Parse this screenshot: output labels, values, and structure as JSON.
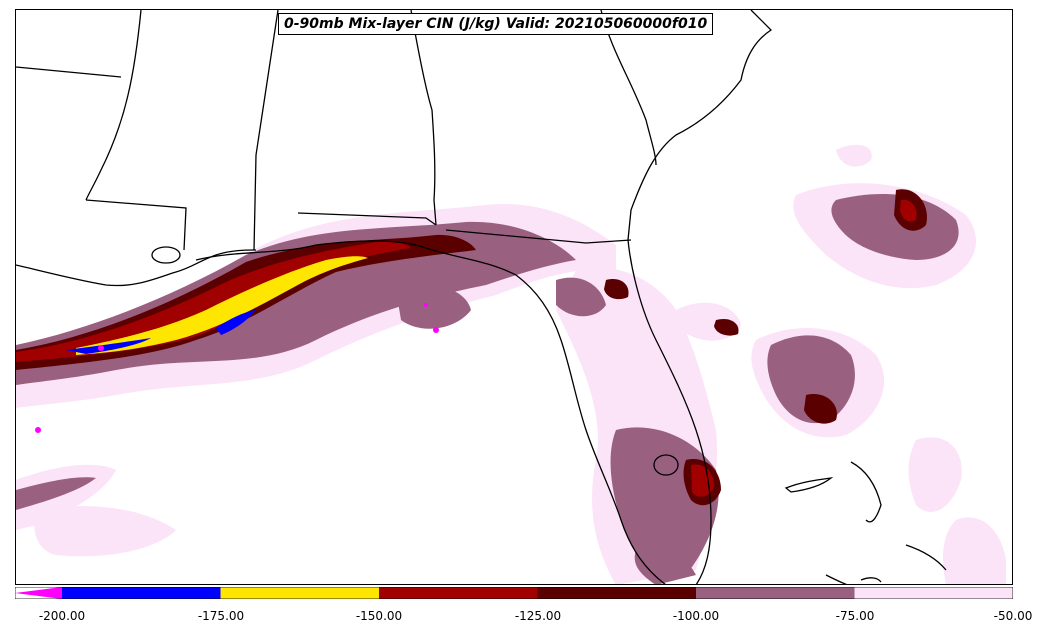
{
  "title": "0-90mb Mix-layer CIN (J/kg) Valid: 202105060000f010",
  "colorbar": {
    "ticks": [
      "-200.00",
      "-175.00",
      "-150.00",
      "-125.00",
      "-100.00",
      "-75.00",
      "-50.00"
    ],
    "levels": [
      {
        "from": -200,
        "to": -175,
        "color": "#0000ff"
      },
      {
        "from": -175,
        "to": -150,
        "color": "#ffe600"
      },
      {
        "from": -150,
        "to": -125,
        "color": "#a00000"
      },
      {
        "from": -125,
        "to": -100,
        "color": "#5a0000"
      },
      {
        "from": -100,
        "to": -75,
        "color": "#9a6080"
      },
      {
        "from": -75,
        "to": -50,
        "color": "#fbe3f8"
      }
    ],
    "under_color": "#ff00ff"
  },
  "colors": {
    "lightest": "#fbe3f8",
    "mauve": "#9a6080",
    "darkred": "#5a0000",
    "red": "#a00000",
    "yellow": "#ffe600",
    "blue": "#0000ff",
    "magenta": "#ff00ff",
    "border": "#000000"
  }
}
